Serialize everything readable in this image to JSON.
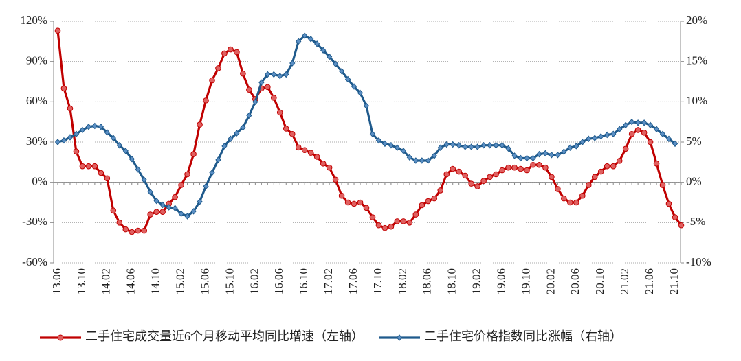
{
  "chart_data": {
    "type": "line",
    "categories": [
      "13.06",
      null,
      null,
      null,
      "13.10",
      null,
      null,
      null,
      "14.02",
      null,
      null,
      null,
      "14.06",
      null,
      null,
      null,
      "14.10",
      null,
      null,
      null,
      "15.02",
      null,
      null,
      null,
      "15.06",
      null,
      null,
      null,
      "15.10",
      null,
      null,
      null,
      "16.02",
      null,
      null,
      null,
      "16.06",
      null,
      null,
      null,
      "16.10",
      null,
      null,
      null,
      "17.02",
      null,
      null,
      null,
      "17.06",
      null,
      null,
      null,
      "17.10",
      null,
      null,
      null,
      "18.02",
      null,
      null,
      null,
      "18.06",
      null,
      null,
      null,
      "18.10",
      null,
      null,
      null,
      "19.02",
      null,
      null,
      null,
      "19.06",
      null,
      null,
      null,
      "19.10",
      null,
      null,
      null,
      "20.02",
      null,
      null,
      null,
      "20.06",
      null,
      null,
      null,
      "20.10",
      null,
      null,
      null,
      "21.02",
      null,
      null,
      null,
      "21.06",
      null,
      null,
      null,
      "21.10",
      null
    ],
    "series": [
      {
        "name": "二手住宅成交量近6个月移动平均同比增速（左轴）",
        "color": "#c00000",
        "axis": "y",
        "values": [
          113,
          70,
          55,
          23,
          12,
          12,
          12,
          7,
          3,
          -21,
          -30,
          -35,
          -37,
          -36,
          -36,
          -24,
          -22,
          -22,
          -16,
          -11,
          -2,
          6,
          21,
          43,
          61,
          76,
          85,
          96,
          99,
          97,
          81,
          69,
          62,
          70,
          71,
          63,
          52,
          40,
          36,
          26,
          24,
          22,
          19,
          14,
          11,
          2,
          -10,
          -15,
          -16,
          -15,
          -19,
          -26,
          -32,
          -34,
          -33,
          -29,
          -29,
          -30,
          -24,
          -17,
          -14,
          -12,
          -6,
          6,
          10,
          8,
          5,
          -1,
          -3,
          1,
          4,
          6,
          9,
          11,
          11,
          10,
          9,
          13,
          13,
          11,
          4,
          -5,
          -12,
          -15,
          -15,
          -10,
          -2,
          4,
          8,
          12,
          12,
          16,
          25,
          36,
          39,
          37,
          30,
          14,
          -2,
          -16,
          -26,
          -32
        ]
      },
      {
        "name": "二手住宅价格指数同比涨幅（右轴）",
        "color": "#1f5a8c",
        "axis": "y2",
        "values": [
          5,
          5.2,
          5.6,
          6,
          6.5,
          6.9,
          7,
          6.9,
          6.2,
          5.5,
          4.6,
          3.9,
          2.9,
          1.6,
          0.3,
          -1.2,
          -2.3,
          -2.8,
          -3.1,
          -3.2,
          -3.9,
          -4.2,
          -3.6,
          -2.4,
          -0.5,
          1.2,
          2.8,
          4.5,
          5.4,
          6.1,
          6.8,
          8.3,
          10,
          12.4,
          13.4,
          13.4,
          13.2,
          13.4,
          14.8,
          17.5,
          18.2,
          17.8,
          17.2,
          16.4,
          15.6,
          14.7,
          13.8,
          12.8,
          11.9,
          11.1,
          9.5,
          6,
          5.2,
          4.8,
          4.6,
          4.3,
          3.9,
          3.1,
          2.7,
          2.7,
          2.7,
          3.3,
          4.3,
          4.7,
          4.7,
          4.6,
          4.4,
          4.4,
          4.4,
          4.6,
          4.6,
          4.6,
          4.6,
          4.2,
          3.3,
          3,
          3,
          3,
          3.5,
          3.6,
          3.4,
          3.4,
          3.8,
          4.3,
          4.5,
          5,
          5.4,
          5.5,
          5.7,
          5.9,
          6,
          6.6,
          7.1,
          7.5,
          7.4,
          7.4,
          7.1,
          6.6,
          6,
          5.4,
          4.8,
          null
        ]
      }
    ],
    "ylim": [
      -60,
      120
    ],
    "yticks": [
      {
        "value": -60,
        "label": "-60%"
      },
      {
        "value": -30,
        "label": "-30%"
      },
      {
        "value": 0,
        "label": "0%"
      },
      {
        "value": 30,
        "label": "30%"
      },
      {
        "value": 60,
        "label": "60%"
      },
      {
        "value": 90,
        "label": "90%"
      },
      {
        "value": 120,
        "label": "120%"
      }
    ],
    "y2lim": [
      -10,
      20
    ],
    "y2ticks": [
      {
        "value": -10,
        "label": "-10%"
      },
      {
        "value": -5,
        "label": "-5%"
      },
      {
        "value": 0,
        "label": "0%"
      },
      {
        "value": 5,
        "label": "5%"
      },
      {
        "value": 10,
        "label": "10%"
      },
      {
        "value": 15,
        "label": "15%"
      },
      {
        "value": 20,
        "label": "20%"
      }
    ],
    "grid": true,
    "legend": "bottom"
  }
}
